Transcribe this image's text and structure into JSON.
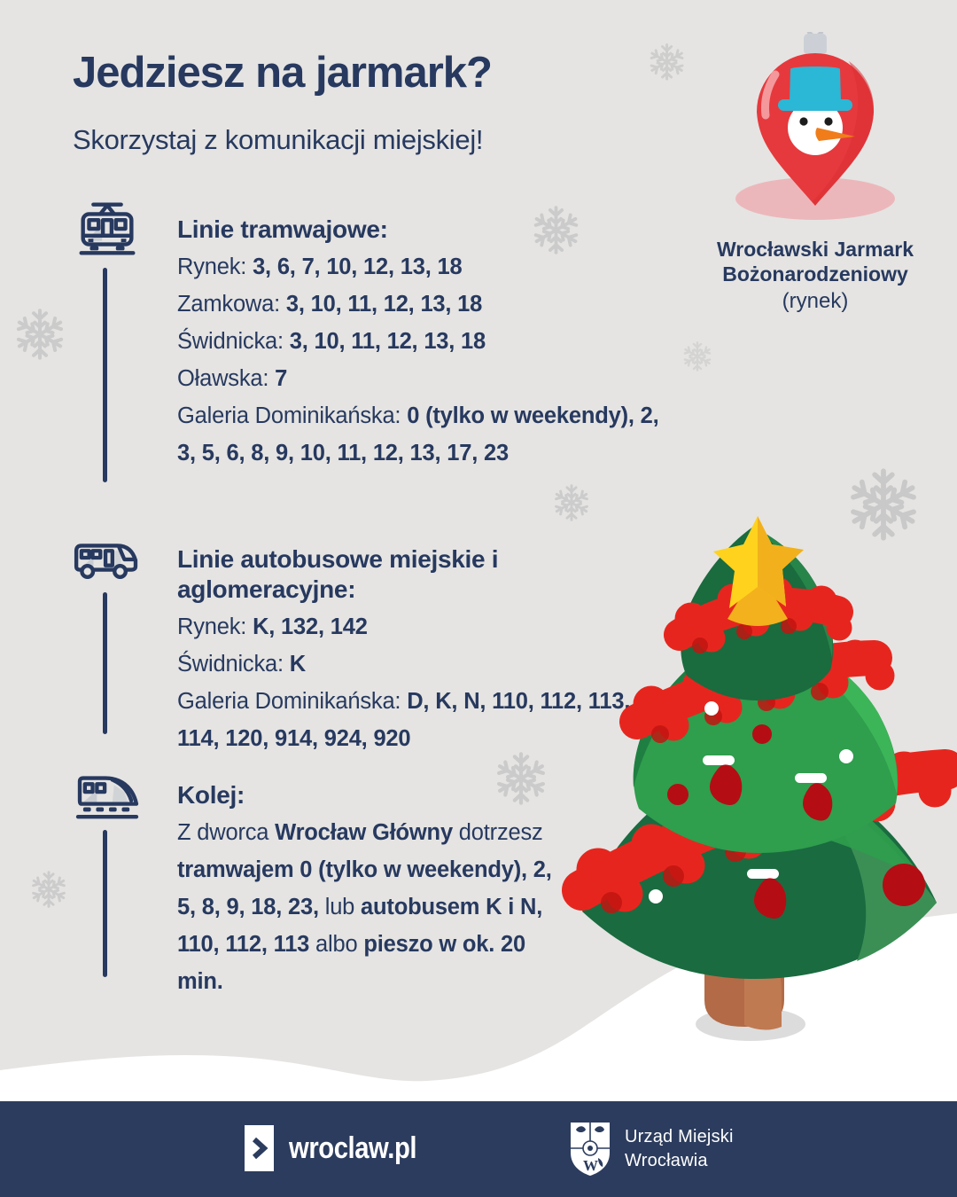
{
  "header": {
    "title": "Jedziesz na jarmark?",
    "subtitle": "Skorzystaj z komunikacji miejskiej!"
  },
  "marker": {
    "caption_line1": "Wrocławski Jarmark",
    "caption_line2": "Bożonarodzeniowy",
    "caption_line3": "(rynek)"
  },
  "sections": [
    {
      "id": "tram",
      "icon": "tram-icon",
      "title": "Linie tramwajowe:",
      "rows": [
        {
          "segments": [
            {
              "t": "Rynek: "
            },
            {
              "t": "3, 6, 7, 10, 12, 13, 18",
              "b": true
            }
          ]
        },
        {
          "segments": [
            {
              "t": "Zamkowa: "
            },
            {
              "t": "3, 10, 11, 12, 13, 18",
              "b": true
            }
          ]
        },
        {
          "segments": [
            {
              "t": "Świdnicka: "
            },
            {
              "t": "3, 10, 11, 12, 13, 18",
              "b": true
            }
          ]
        },
        {
          "segments": [
            {
              "t": "Oławska: "
            },
            {
              "t": "7",
              "b": true
            }
          ]
        },
        {
          "segments": [
            {
              "t": "Galeria Dominikańska: "
            },
            {
              "t": "0 (tylko w weekendy), 2, 3, 5, 6, 8, 9, 10, 11, 12, 13, 17, 23",
              "b": true
            }
          ]
        }
      ]
    },
    {
      "id": "bus",
      "icon": "bus-icon",
      "title": "Linie autobusowe miejskie i aglomeracyjne:",
      "rows": [
        {
          "segments": [
            {
              "t": "Rynek: "
            },
            {
              "t": "K, 132, 142",
              "b": true
            }
          ]
        },
        {
          "segments": [
            {
              "t": "Świdnicka: "
            },
            {
              "t": "K",
              "b": true
            }
          ]
        },
        {
          "segments": [
            {
              "t": "Galeria Dominikańska: "
            },
            {
              "t": "D, K, N, 110, 112, 113, 114, 120, 914, 924, 920",
              "b": true
            }
          ]
        }
      ]
    },
    {
      "id": "rail",
      "icon": "train-icon",
      "title": "Kolej:",
      "rows": [
        {
          "segments": [
            {
              "t": "Z dworca "
            },
            {
              "t": "Wrocław Główny",
              "b": true
            },
            {
              "t": " dotrzesz "
            },
            {
              "t": "tramwajem 0 (tylko w weekendy), 2, 5, 8, 9, 18, 23,",
              "b": true
            },
            {
              "t": " lub "
            },
            {
              "t": "autobusem K i N, 110, 112, 113",
              "b": true
            },
            {
              "t": " albo "
            },
            {
              "t": "pieszo w ok. 20 min.",
              "b": true
            }
          ]
        }
      ]
    }
  ],
  "footer": {
    "site": "wroclaw.pl",
    "org_line1": "Urząd Miejski",
    "org_line2": "Wrocławia"
  },
  "colors": {
    "navy": "#27395f",
    "footer_navy": "#2c3c5e",
    "background": "#e5e4e2",
    "snowflake": "#c7c7c7",
    "pin_red": "#e6393d",
    "hat_teal": "#2bb7d6",
    "shadow_pink": "#ecb7bb",
    "garland_red": "#e6261e",
    "green_dark": "#1a6b3e",
    "green_mid": "#2f9e4d",
    "star_yellow": "#ffd21e",
    "trunk_brown": "#b26b46",
    "snow_white": "#ffffff"
  }
}
